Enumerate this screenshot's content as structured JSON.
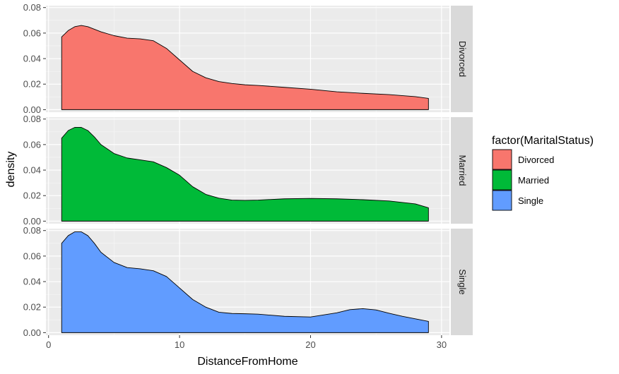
{
  "chart_data": {
    "type": "area",
    "subtype": "faceted density",
    "xlabel": "DistanceFromHome",
    "ylabel": "density",
    "xlim": [
      -0.2,
      30.6
    ],
    "ylim": [
      -0.002,
      0.0815
    ],
    "x_ticks": [
      0,
      10,
      20,
      30
    ],
    "x_tick_labels": [
      "0",
      "10",
      "20",
      "30"
    ],
    "y_ticks": [
      0,
      0.02,
      0.04,
      0.06,
      0.08
    ],
    "y_tick_labels": [
      "0.00",
      "0.02",
      "0.04",
      "0.06",
      "0.08"
    ],
    "grid": true,
    "legend": {
      "title": "factor(MaritalStatus)",
      "placement": "right",
      "entries": [
        "Divorced",
        "Married",
        "Single"
      ]
    },
    "series": [
      {
        "name": "Divorced",
        "color": "#F8766D",
        "x": [
          1,
          1.5,
          2,
          2.5,
          3,
          3.5,
          4,
          5,
          6,
          7,
          8,
          9,
          10,
          11,
          12,
          13,
          14,
          15,
          16,
          18,
          20,
          22,
          24,
          26,
          28,
          29
        ],
        "y": [
          0.057,
          0.062,
          0.065,
          0.066,
          0.065,
          0.063,
          0.061,
          0.058,
          0.056,
          0.0555,
          0.054,
          0.048,
          0.039,
          0.03,
          0.025,
          0.022,
          0.0205,
          0.0195,
          0.019,
          0.0175,
          0.016,
          0.014,
          0.0128,
          0.0118,
          0.0102,
          0.0088
        ]
      },
      {
        "name": "Married",
        "color": "#00BA38",
        "x": [
          1,
          1.5,
          2,
          2.5,
          3,
          3.5,
          4,
          5,
          6,
          7,
          8,
          9,
          10,
          11,
          12,
          13,
          14,
          15,
          16,
          18,
          20,
          22,
          24,
          26,
          28,
          29
        ],
        "y": [
          0.065,
          0.071,
          0.0735,
          0.0735,
          0.071,
          0.066,
          0.06,
          0.053,
          0.0495,
          0.048,
          0.0465,
          0.042,
          0.036,
          0.027,
          0.021,
          0.018,
          0.0165,
          0.0163,
          0.0165,
          0.0175,
          0.0178,
          0.0175,
          0.0168,
          0.0158,
          0.0135,
          0.0105
        ]
      },
      {
        "name": "Single",
        "color": "#619CFF",
        "x": [
          1,
          1.5,
          2,
          2.5,
          3,
          3.5,
          4,
          5,
          6,
          7,
          8,
          9,
          10,
          11,
          12,
          13,
          14,
          15,
          16,
          18,
          20,
          22,
          23,
          24,
          25,
          26,
          27,
          28,
          29
        ],
        "y": [
          0.07,
          0.076,
          0.079,
          0.079,
          0.076,
          0.07,
          0.063,
          0.055,
          0.051,
          0.05,
          0.0485,
          0.044,
          0.035,
          0.026,
          0.02,
          0.016,
          0.015,
          0.0148,
          0.0145,
          0.0128,
          0.0123,
          0.0155,
          0.018,
          0.0188,
          0.0178,
          0.0152,
          0.0128,
          0.0108,
          0.0088
        ]
      }
    ]
  }
}
